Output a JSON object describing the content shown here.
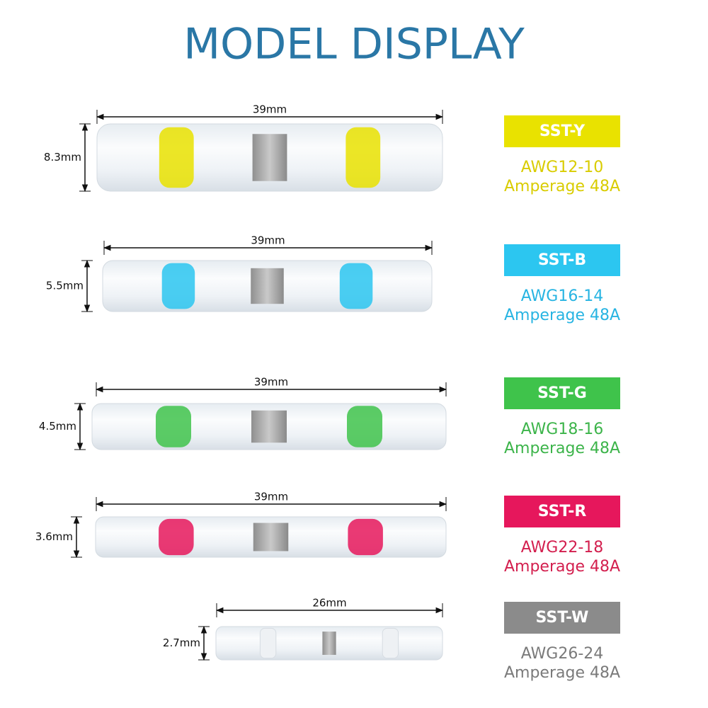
{
  "title": "MODEL DISPLAY",
  "models": [
    {
      "length": "39mm",
      "diameter": "8.3mm",
      "name": "SST-Y",
      "awg": "AWG12-10",
      "amperage": "Amperage 48A",
      "color": "#e9e200",
      "text_color": "#d9cc00"
    },
    {
      "length": "39mm",
      "diameter": "5.5mm",
      "name": "SST-B",
      "awg": "AWG16-14",
      "amperage": "Amperage 48A",
      "color": "#2cc6f0",
      "text_color": "#27b4e2"
    },
    {
      "length": "39mm",
      "diameter": "4.5mm",
      "name": "SST-G",
      "awg": "AWG18-16",
      "amperage": "Amperage 48A",
      "color": "#3fc34b",
      "text_color": "#3cb44a"
    },
    {
      "length": "39mm",
      "diameter": "3.6mm",
      "name": "SST-R",
      "awg": "AWG22-18",
      "amperage": "Amperage 48A",
      "color": "#e6175c",
      "text_color": "#d31f4e"
    },
    {
      "length": "26mm",
      "diameter": "2.7mm",
      "name": "SST-W",
      "awg": "AWG26-24",
      "amperage": "Amperage 48A",
      "color": "#8b8b8b",
      "text_color": "#7a7a7a"
    }
  ]
}
